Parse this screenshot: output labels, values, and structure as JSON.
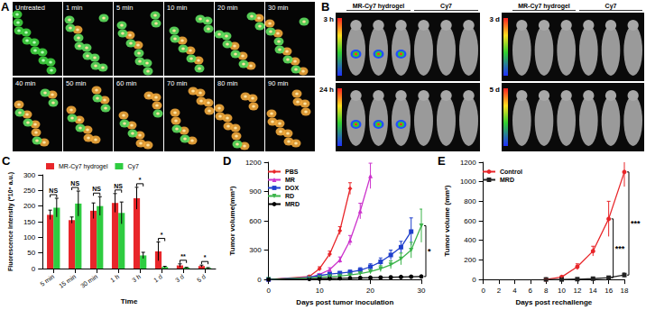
{
  "image_panels": [
    {
      "panel": "A",
      "captions": [
        "Untreated",
        "1 min",
        "5 min",
        "10 min",
        "20 min",
        "30 min",
        "40 min",
        "50 min",
        "60 min",
        "70 min",
        "80 min",
        "90 min"
      ]
    },
    {
      "panel": "B",
      "groups": [
        "MR-Cy7 hydrogel",
        "Cy7"
      ],
      "times": [
        "3 h",
        "24 h",
        "3 d",
        "5 d"
      ]
    }
  ],
  "chart_data": [
    {
      "panel": "C",
      "type": "bar",
      "x_label": "Time",
      "y_label": "Fluorescence Intensity (*10⁶ a.u.)",
      "categories": [
        "5 min",
        "15 min",
        "30 min",
        "1 h",
        "3 h",
        "1 d",
        "3 d",
        "5 d"
      ],
      "series": [
        {
          "name": "MR-Cy7 hydrogel",
          "color": "#e8262a",
          "values": [
            172,
            155,
            185,
            210,
            225,
            55,
            10,
            8
          ],
          "errors": [
            15,
            10,
            25,
            30,
            35,
            30,
            5,
            3
          ]
        },
        {
          "name": "Cy7",
          "color": "#2ecc40",
          "values": [
            195,
            208,
            200,
            178,
            42,
            5,
            3,
            2
          ],
          "errors": [
            30,
            40,
            30,
            35,
            10,
            2,
            1,
            1
          ]
        }
      ],
      "significance": [
        "NS",
        "NS",
        "NS",
        "NS",
        "*",
        "*",
        "**",
        "*"
      ],
      "ylim": [
        0,
        300
      ],
      "yticks": [
        0,
        50,
        100,
        150,
        200,
        250,
        300
      ],
      "grid": false,
      "legend": "top-left"
    },
    {
      "panel": "D",
      "type": "line",
      "x_label": "Days post tumor inoculation",
      "y_label": "Tumor volume(mm³)",
      "x": [
        0,
        8,
        10,
        12,
        14,
        16,
        18,
        20,
        22,
        24,
        26,
        28,
        30
      ],
      "series": [
        {
          "name": "PBS",
          "color": "#e8262a",
          "marker": "diamond",
          "values": [
            0,
            30,
            110,
            260,
            500,
            930,
            null,
            null,
            null,
            null,
            null,
            null,
            null
          ],
          "errors": [
            0,
            10,
            20,
            30,
            40,
            60,
            null,
            null,
            null,
            null,
            null,
            null,
            null
          ]
        },
        {
          "name": "MR",
          "color": "#cc33cc",
          "marker": "triangle",
          "values": [
            0,
            20,
            50,
            100,
            200,
            400,
            700,
            1060,
            null,
            null,
            null,
            null,
            null
          ],
          "errors": [
            0,
            5,
            10,
            20,
            30,
            50,
            80,
            130,
            null,
            null,
            null,
            null,
            null
          ]
        },
        {
          "name": "DOX",
          "color": "#1f3fcc",
          "marker": "square",
          "values": [
            0,
            20,
            40,
            55,
            65,
            75,
            95,
            130,
            180,
            250,
            330,
            490,
            null
          ],
          "errors": [
            0,
            5,
            10,
            15,
            15,
            20,
            25,
            30,
            40,
            50,
            60,
            140,
            null
          ]
        },
        {
          "name": "RD",
          "color": "#3cb44b",
          "marker": "triangle-down",
          "values": [
            0,
            15,
            25,
            30,
            35,
            45,
            60,
            80,
            110,
            150,
            210,
            300,
            550
          ],
          "errors": [
            0,
            5,
            5,
            10,
            10,
            10,
            15,
            20,
            30,
            40,
            60,
            80,
            170
          ]
        },
        {
          "name": "MRD",
          "color": "#000000",
          "marker": "circle",
          "values": [
            0,
            5,
            8,
            10,
            12,
            14,
            16,
            18,
            20,
            22,
            25,
            28,
            30
          ],
          "errors": [
            0,
            2,
            2,
            3,
            3,
            4,
            4,
            5,
            6,
            6,
            8,
            9,
            10
          ]
        }
      ],
      "annotations": [
        {
          "text": "*",
          "x": 30
        }
      ],
      "xlim": [
        0,
        30
      ],
      "xticks": [
        0,
        10,
        20,
        30
      ],
      "ylim": [
        0,
        1200
      ],
      "yticks": [
        0,
        300,
        600,
        900,
        1200
      ],
      "grid": false,
      "legend": "top-left"
    },
    {
      "panel": "E",
      "type": "line",
      "x_label": "Days post rechallenge",
      "y_label": "Tumor volume (mm³)",
      "x": [
        8,
        10,
        12,
        14,
        16,
        18
      ],
      "series": [
        {
          "name": "Control",
          "color": "#e8262a",
          "marker": "circle",
          "values": [
            0,
            25,
            130,
            290,
            620,
            1100
          ],
          "errors": [
            3,
            10,
            30,
            50,
            180,
            150
          ]
        },
        {
          "name": "MRD",
          "color": "#222222",
          "marker": "square",
          "values": [
            0,
            0,
            3,
            8,
            18,
            45
          ],
          "errors": [
            1,
            1,
            2,
            4,
            8,
            20
          ]
        }
      ],
      "annotations": [
        {
          "text": "***",
          "x": 16
        },
        {
          "text": "***",
          "x": 18
        }
      ],
      "xlim": [
        0,
        18
      ],
      "xticks": [
        0,
        2,
        4,
        6,
        8,
        10,
        12,
        14,
        16,
        18
      ],
      "ylim": [
        0,
        1200
      ],
      "yticks": [
        0,
        200,
        400,
        600,
        800,
        1000,
        1200
      ],
      "grid": false,
      "legend": "top-left"
    }
  ]
}
